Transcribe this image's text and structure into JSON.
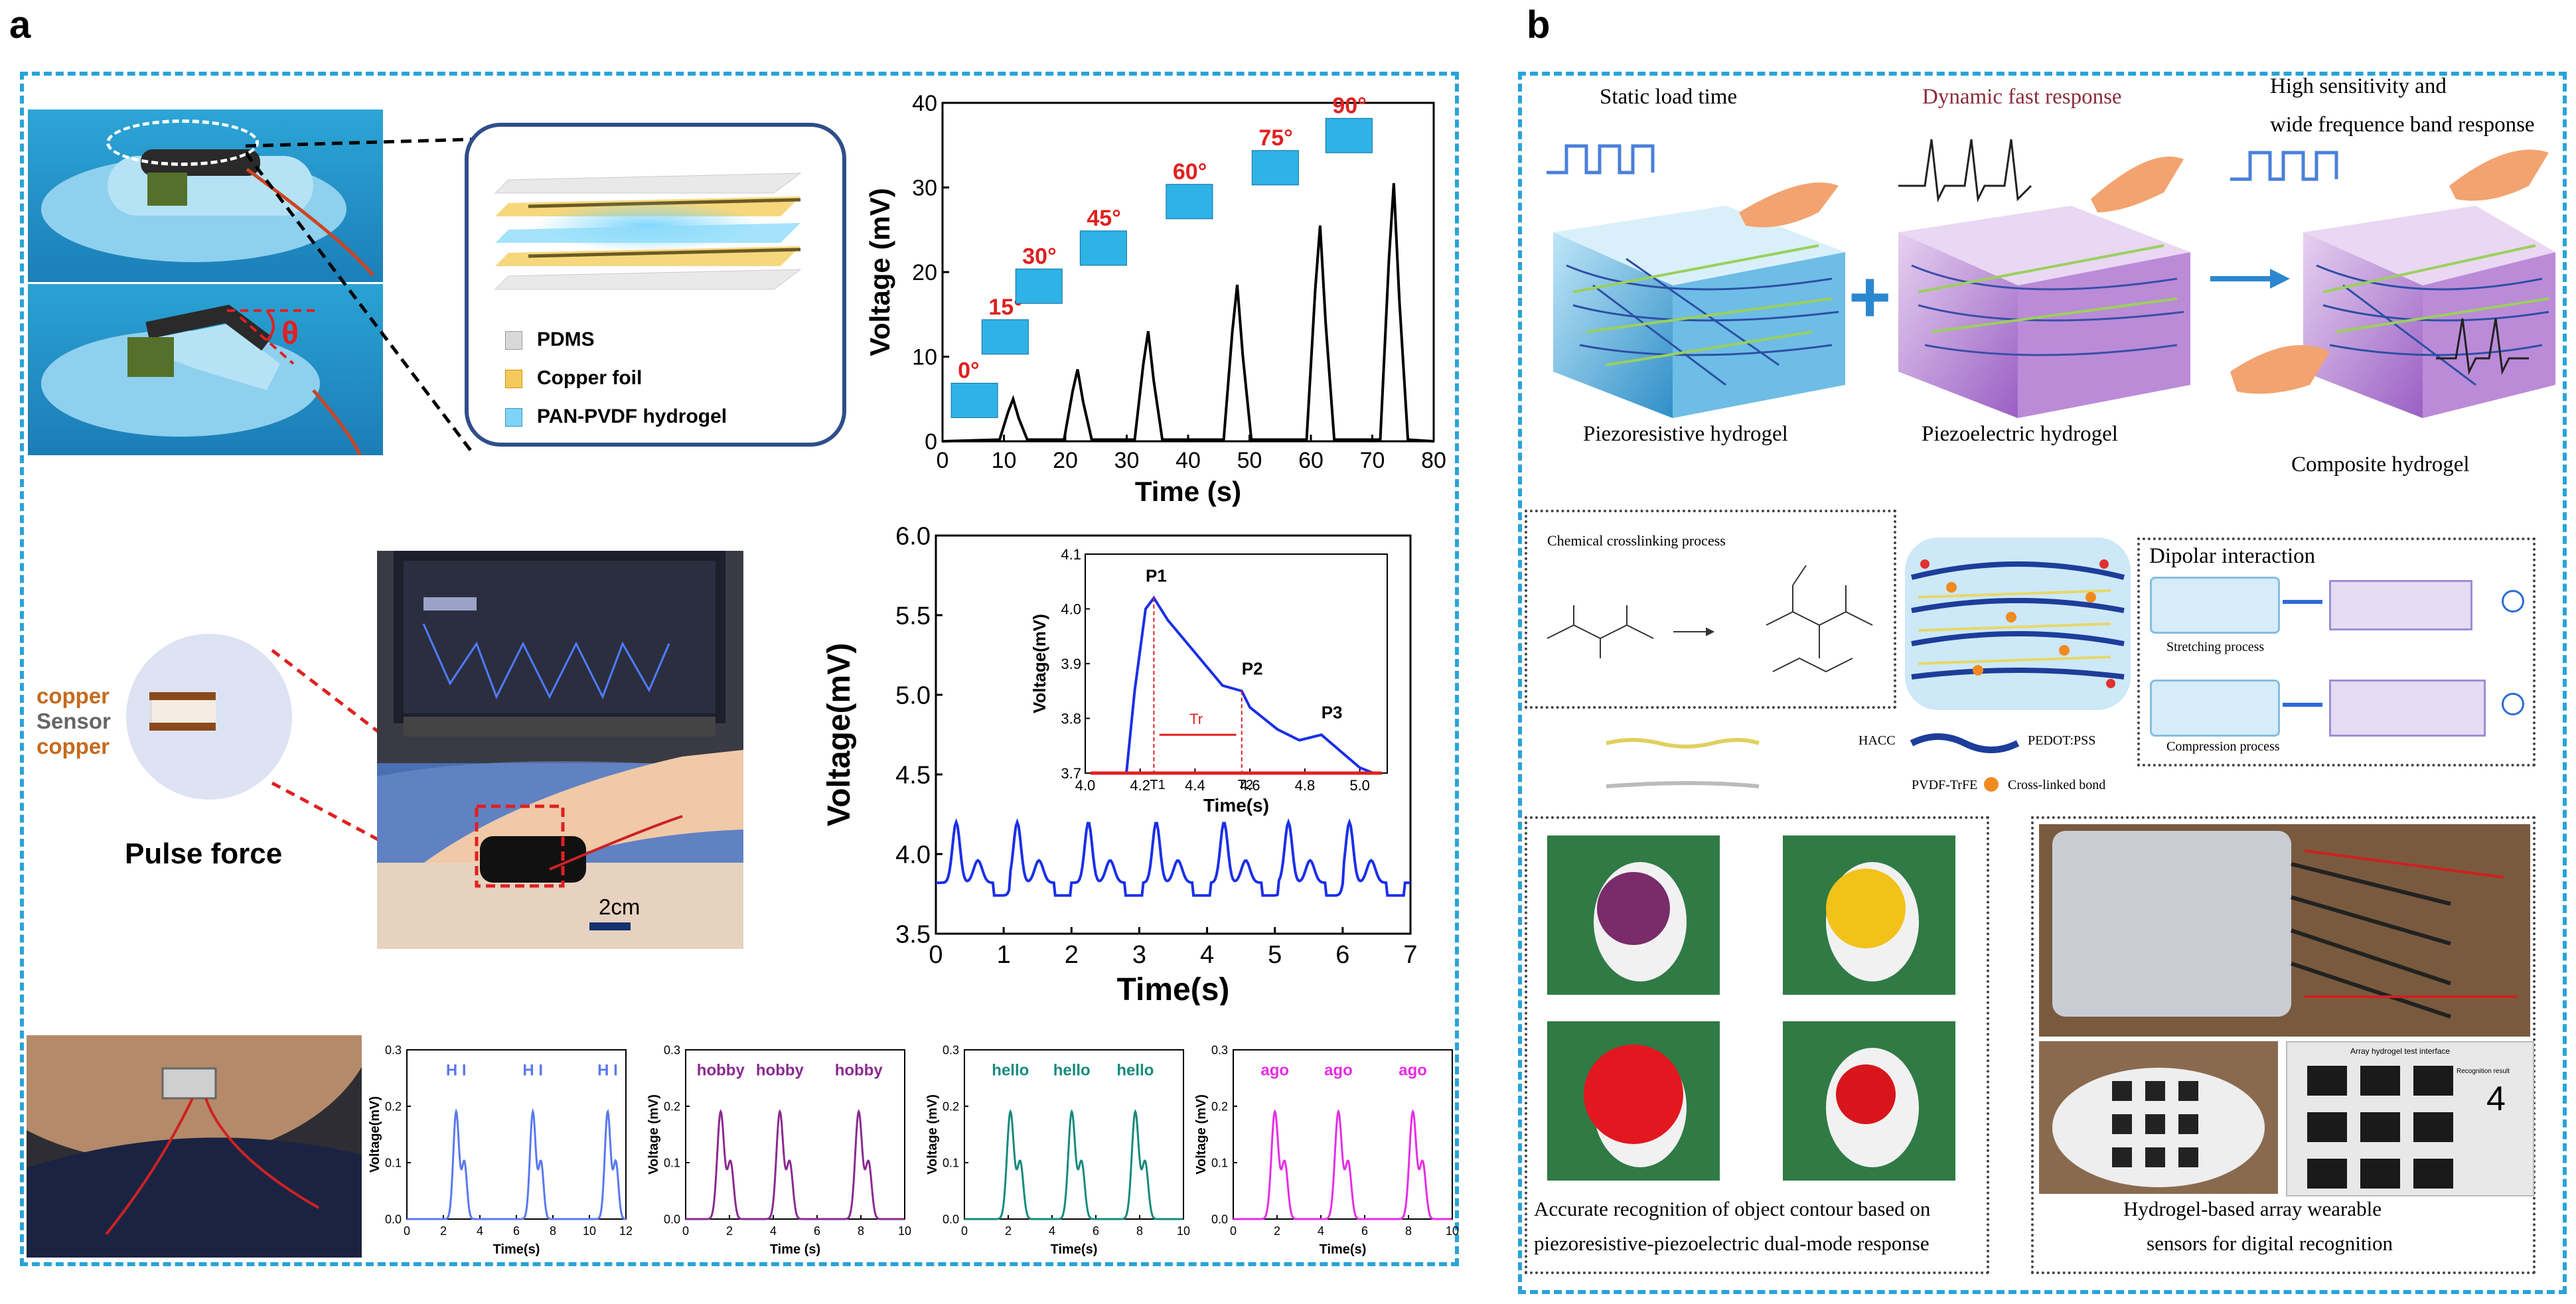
{
  "panel_a": {
    "letter": "a",
    "layer_legend": [
      {
        "label": "PDMS",
        "color": "#d9d9d9"
      },
      {
        "label": "Copper foil",
        "color": "#f6c95e"
      },
      {
        "label": "PAN-PVDF hydrogel",
        "color": "#7fd3f7"
      }
    ],
    "bend_angle_symbol": "θ",
    "pulse": {
      "stack_labels": [
        "copper",
        "Sensor",
        "copper"
      ],
      "title": "Pulse force",
      "scale_bar": "2cm"
    }
  },
  "panel_b": {
    "letter": "b",
    "top": {
      "captions": [
        "Static  load time",
        "Dynamic fast response",
        "High sensitivity and",
        "wide frequence band response"
      ],
      "hydrogels": [
        "Piezoresistive hydrogel",
        "Piezoelectric hydrogel",
        "Composite hydrogel"
      ]
    },
    "mid": {
      "chem_title": "Chemical crosslinking process",
      "dipolar_title": "Dipolar interaction",
      "stretching": "Stretching process",
      "compression": "Compression process",
      "legend": [
        "HACC",
        "PEDOT:PSS",
        "PVDF-TrFE",
        "Cross-linked bond"
      ]
    },
    "bottom": {
      "left_caption": [
        "Accurate recognition of object contour based on",
        "piezoresistive-piezoelectric dual-mode response"
      ],
      "right_caption": [
        "Hydrogel-based array wearable",
        "sensors for digital recognition"
      ],
      "array_title": "Array hydrogel test interface",
      "recognition_label": "Recognition result",
      "recognized_digit": "4"
    }
  },
  "chart_data": [
    {
      "type": "line",
      "id": "bending",
      "title": "",
      "xlabel": "Time (s)",
      "ylabel": "Voltage (mV)",
      "xlim": [
        0,
        80
      ],
      "ylim": [
        0,
        40
      ],
      "xticks": [
        0,
        10,
        20,
        30,
        40,
        50,
        60,
        70,
        80
      ],
      "yticks": [
        0,
        10,
        20,
        30,
        40
      ],
      "annotations": [
        "0°",
        "15°",
        "30°",
        "45°",
        "60°",
        "75°",
        "90°"
      ],
      "peaks": [
        {
          "t": 11.5,
          "v": 5
        },
        {
          "t": 22,
          "v": 8.5
        },
        {
          "t": 33.5,
          "v": 13
        },
        {
          "t": 48,
          "v": 18.5
        },
        {
          "t": 61.5,
          "v": 25.5
        },
        {
          "t": 73.5,
          "v": 30.5
        }
      ]
    },
    {
      "type": "line",
      "id": "pulse",
      "xlabel": "Time(s)",
      "ylabel": "Voltage(mV)",
      "xlim": [
        0,
        7
      ],
      "ylim": [
        3.5,
        6.0
      ],
      "xticks": [
        0,
        1,
        2,
        3,
        4,
        5,
        6,
        7
      ],
      "yticks": [
        3.5,
        4.0,
        4.5,
        5.0,
        5.5,
        6.0
      ],
      "peak_times": [
        0.3,
        1.2,
        2.25,
        3.25,
        4.25,
        5.2,
        6.1
      ],
      "inset": {
        "xlabel": "Time(s)",
        "ylabel": "Voltage(mV)",
        "xlim": [
          4.0,
          5.1
        ],
        "ylim": [
          3.7,
          4.1
        ],
        "xticks": [
          4.0,
          4.2,
          4.4,
          4.6,
          4.8,
          5.0
        ],
        "yticks": [
          3.7,
          3.8,
          3.9,
          4.0,
          4.1
        ],
        "points": [
          "P1",
          "P2",
          "P3"
        ],
        "marks": [
          "T1",
          "Tr",
          "T2"
        ],
        "series": [
          [
            4.15,
            3.7
          ],
          [
            4.18,
            3.85
          ],
          [
            4.22,
            4.0
          ],
          [
            4.25,
            4.02
          ],
          [
            4.3,
            3.98
          ],
          [
            4.4,
            3.92
          ],
          [
            4.5,
            3.86
          ],
          [
            4.57,
            3.85
          ],
          [
            4.6,
            3.82
          ],
          [
            4.7,
            3.78
          ],
          [
            4.78,
            3.76
          ],
          [
            4.86,
            3.77
          ],
          [
            4.93,
            3.74
          ],
          [
            5.0,
            3.71
          ],
          [
            5.05,
            3.7
          ]
        ]
      }
    },
    {
      "type": "line",
      "id": "speech-hi",
      "xlabel": "Time(s)",
      "ylabel": "Voltage(mV)",
      "xlim": [
        0,
        12
      ],
      "ylim": [
        0,
        0.3
      ],
      "xticks": [
        0,
        2,
        4,
        6,
        8,
        10,
        12
      ],
      "yticks": [
        0.0,
        0.1,
        0.2,
        0.3
      ],
      "word": "H I",
      "color": "#5a78f0",
      "peaks": [
        2.7,
        6.9,
        11.0
      ]
    },
    {
      "type": "line",
      "id": "speech-hobby",
      "xlabel": "Time (s)",
      "ylabel": "Voltage (mV)",
      "xlim": [
        0,
        10
      ],
      "ylim": [
        0,
        0.3
      ],
      "xticks": [
        0,
        2,
        4,
        6,
        8,
        10
      ],
      "yticks": [
        0.0,
        0.1,
        0.2,
        0.3
      ],
      "word": "hobby",
      "color": "#8a2a8f",
      "peaks": [
        1.6,
        4.3,
        7.9
      ]
    },
    {
      "type": "line",
      "id": "speech-hello",
      "xlabel": "Time(s)",
      "ylabel": "Voltage (mV)",
      "xlim": [
        0,
        10
      ],
      "ylim": [
        0,
        0.3
      ],
      "xticks": [
        0,
        2,
        4,
        6,
        8,
        10
      ],
      "yticks": [
        0.0,
        0.1,
        0.2,
        0.3
      ],
      "word": "hello",
      "color": "#178a7c",
      "peaks": [
        2.1,
        4.9,
        7.8
      ]
    },
    {
      "type": "line",
      "id": "speech-ago",
      "xlabel": "Time(s)",
      "ylabel": "Voltage (mV)",
      "xlim": [
        0,
        10
      ],
      "ylim": [
        0,
        0.3
      ],
      "xticks": [
        0,
        2,
        4,
        6,
        8,
        10
      ],
      "yticks": [
        0.0,
        0.1,
        0.2,
        0.3
      ],
      "word": "ago",
      "color": "#e62de6",
      "peaks": [
        1.9,
        4.8,
        8.2
      ]
    }
  ]
}
